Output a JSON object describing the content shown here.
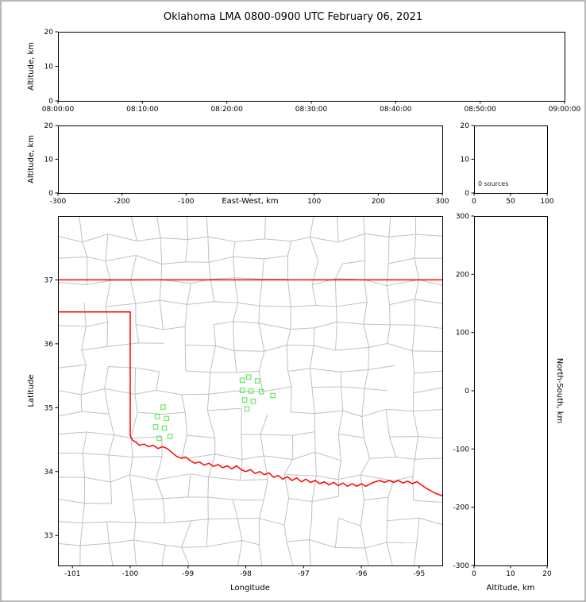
{
  "title": "Oklahoma LMA 0800-0900 UTC February 06, 2021",
  "colors": {
    "frame": "#000000",
    "county": "#c0c0c0",
    "state_border": "#ff0000",
    "station": "#5ce65c",
    "background": "#ffffff",
    "figure_border": "#b8b8b8"
  },
  "chart_data": [
    {
      "id": "time_height",
      "type": "scatter",
      "xlabel": "",
      "ylabel": "Altitude, km",
      "xlim": [
        0,
        3600
      ],
      "xticks": [
        0,
        600,
        1200,
        1800,
        2400,
        3000,
        3600
      ],
      "xtick_labels": [
        "08:00:00",
        "08:10:00",
        "08:20:00",
        "08:30:00",
        "08:40:00",
        "08:50:00",
        "09:00:00"
      ],
      "ylim": [
        0,
        20
      ],
      "yticks": [
        0,
        10,
        20
      ],
      "points": []
    },
    {
      "id": "ew_height",
      "type": "scatter",
      "xlabel": "East-West, km",
      "ylabel": "Altitude, km",
      "xlim": [
        -300,
        300
      ],
      "xticks": [
        -300,
        -200,
        -100,
        0,
        100,
        200,
        300
      ],
      "xtick_labels": [
        "-300",
        "-200",
        "-100",
        "",
        "100",
        "200",
        "300"
      ],
      "ylim": [
        0,
        20
      ],
      "yticks": [
        0,
        10,
        20
      ],
      "points": []
    },
    {
      "id": "alt_histogram",
      "type": "line",
      "xlabel": "",
      "ylabel": "",
      "annotation": "0 sources",
      "xlim": [
        0,
        100
      ],
      "xticks": [
        0,
        50,
        100
      ],
      "ylim": [
        0,
        20
      ],
      "yticks": [
        0,
        10,
        20
      ],
      "points": []
    },
    {
      "id": "plan_view",
      "type": "map",
      "xlabel": "Longitude",
      "ylabel": "Latitude",
      "xlim": [
        -101.25,
        -94.6
      ],
      "xticks": [
        -101,
        -100,
        -99,
        -98,
        -97,
        -96,
        -95
      ],
      "ylim": [
        32.53,
        38.0
      ],
      "yticks": [
        33,
        34,
        35,
        36,
        37
      ],
      "stations": [
        [
          -98.06,
          35.43
        ],
        [
          -97.95,
          35.48
        ],
        [
          -97.8,
          35.42
        ],
        [
          -98.06,
          35.27
        ],
        [
          -97.91,
          35.26
        ],
        [
          -97.73,
          35.25
        ],
        [
          -98.02,
          35.12
        ],
        [
          -97.87,
          35.1
        ],
        [
          -97.98,
          34.98
        ],
        [
          -97.53,
          35.19
        ],
        [
          -99.43,
          35.01
        ],
        [
          -99.53,
          34.86
        ],
        [
          -99.37,
          34.83
        ],
        [
          -99.56,
          34.7
        ],
        [
          -99.41,
          34.68
        ],
        [
          -99.31,
          34.55
        ],
        [
          -99.5,
          34.52
        ]
      ],
      "state_border": [
        [
          [
            -101.25,
            37.0
          ],
          [
            -94.6,
            37.0
          ]
        ],
        [
          [
            -101.25,
            36.5
          ],
          [
            -100.0,
            36.5
          ],
          [
            -100.0,
            34.56
          ],
          [
            -99.96,
            34.49
          ],
          [
            -99.9,
            34.46
          ],
          [
            -99.84,
            34.41
          ],
          [
            -99.76,
            34.43
          ],
          [
            -99.68,
            34.39
          ],
          [
            -99.6,
            34.41
          ],
          [
            -99.52,
            34.36
          ],
          [
            -99.44,
            34.39
          ],
          [
            -99.36,
            34.36
          ],
          [
            -99.28,
            34.3
          ],
          [
            -99.2,
            34.24
          ],
          [
            -99.12,
            34.21
          ],
          [
            -99.04,
            34.23
          ],
          [
            -98.96,
            34.17
          ],
          [
            -98.88,
            34.13
          ],
          [
            -98.8,
            34.15
          ],
          [
            -98.72,
            34.1
          ],
          [
            -98.64,
            34.13
          ],
          [
            -98.56,
            34.08
          ],
          [
            -98.48,
            34.11
          ],
          [
            -98.4,
            34.06
          ],
          [
            -98.32,
            34.09
          ],
          [
            -98.24,
            34.04
          ],
          [
            -98.16,
            34.09
          ],
          [
            -98.08,
            34.03
          ],
          [
            -98.0,
            34.0
          ],
          [
            -97.92,
            34.03
          ],
          [
            -97.84,
            33.97
          ],
          [
            -97.76,
            34.0
          ],
          [
            -97.68,
            33.95
          ],
          [
            -97.6,
            33.98
          ],
          [
            -97.52,
            33.91
          ],
          [
            -97.44,
            33.94
          ],
          [
            -97.36,
            33.88
          ],
          [
            -97.28,
            33.92
          ],
          [
            -97.2,
            33.86
          ],
          [
            -97.12,
            33.9
          ],
          [
            -97.04,
            33.84
          ],
          [
            -96.96,
            33.88
          ],
          [
            -96.88,
            33.83
          ],
          [
            -96.8,
            33.86
          ],
          [
            -96.72,
            33.81
          ],
          [
            -96.64,
            33.84
          ],
          [
            -96.56,
            33.79
          ],
          [
            -96.48,
            33.83
          ],
          [
            -96.4,
            33.78
          ],
          [
            -96.32,
            33.82
          ],
          [
            -96.24,
            33.77
          ],
          [
            -96.16,
            33.81
          ],
          [
            -96.08,
            33.77
          ],
          [
            -96.0,
            33.81
          ],
          [
            -95.92,
            33.77
          ],
          [
            -95.84,
            33.81
          ],
          [
            -95.76,
            33.84
          ],
          [
            -95.68,
            33.86
          ],
          [
            -95.6,
            33.83
          ],
          [
            -95.52,
            33.86
          ],
          [
            -95.44,
            33.83
          ],
          [
            -95.36,
            33.86
          ],
          [
            -95.28,
            33.82
          ],
          [
            -95.2,
            33.85
          ],
          [
            -95.12,
            33.81
          ],
          [
            -95.04,
            33.84
          ],
          [
            -94.96,
            33.79
          ],
          [
            -94.88,
            33.74
          ],
          [
            -94.8,
            33.7
          ],
          [
            -94.72,
            33.66
          ],
          [
            -94.6,
            33.62
          ]
        ]
      ],
      "county_grid": {
        "seed": 11,
        "cols": 15,
        "rows": 16,
        "jitter": 0.4,
        "skip": 0.15
      }
    },
    {
      "id": "ns_height",
      "type": "scatter",
      "xlabel": "Altitude, km",
      "ylabel": "North-South, km",
      "ylabel_side": "right",
      "xlim": [
        0,
        20
      ],
      "xticks": [
        0,
        10,
        20
      ],
      "ylim": [
        -300,
        300
      ],
      "yticks": [
        -300,
        -200,
        -100,
        0,
        100,
        200,
        300
      ],
      "points": []
    }
  ]
}
